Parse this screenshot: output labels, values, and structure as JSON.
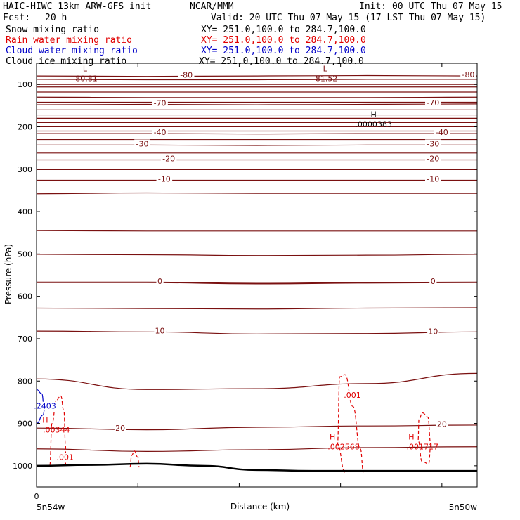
{
  "header": {
    "model": "HAIC-HIWC 13km ARW-GFS init",
    "center": "NCAR/MMM",
    "init": "Init: 00 UTC Thu 07 May 15",
    "fcst_label": "Fcst:",
    "fcst_value": "20 h",
    "valid": "Valid: 20 UTC Thu 07 May 15 (17 LST Thu 07 May 15)"
  },
  "fields": [
    {
      "label": "Snow mixing ratio",
      "xy": "XY= 251.0,100.0 to 284.7,100.0",
      "color": "#000000"
    },
    {
      "label": "Rain water mixing ratio",
      "xy": "XY= 251.0,100.0 to 284.7,100.0",
      "color": "#e00000"
    },
    {
      "label": "Cloud water mixing ratio",
      "xy": "XY= 251.0,100.0 to 284.7,100.0",
      "color": "#0000c8"
    },
    {
      "label": "Cloud ice mixing ratio",
      "xy": "XY= 251.0,100.0 to 284.7,100.0",
      "color": "#000000"
    }
  ],
  "chart_data": {
    "type": "contour",
    "xlabel": "Distance (km)",
    "ylabel": "Pressure (hPa)",
    "x_left_label": "5n54w",
    "x_right_label": "5n50w",
    "x_zero_label": "0",
    "ylim": [
      1050,
      50
    ],
    "yticks": [
      100,
      200,
      300,
      400,
      500,
      600,
      700,
      800,
      900,
      1000
    ],
    "xticks_frac": [
      0.0,
      0.23,
      0.46,
      0.69,
      0.92
    ],
    "colors": {
      "temperature": "#7a1010",
      "rain": "#e00000",
      "cloud_water": "#0000c8",
      "terrain": "#000000"
    },
    "temperature_isotherms": [
      {
        "value": -80,
        "label": "-80",
        "pressure": [
          80,
          81,
          80,
          79,
          80
        ]
      },
      {
        "value": -70,
        "label": "-70",
        "pressure": [
          148,
          147,
          148,
          147,
          146
        ]
      },
      {
        "value": -40,
        "label": "-40",
        "pressure": [
          216,
          216,
          217,
          216,
          216
        ]
      },
      {
        "value": -30,
        "label": "-30",
        "pressure": [
          243,
          243,
          244,
          243,
          243
        ]
      },
      {
        "value": -20,
        "label": "-20",
        "pressure": [
          278,
          278,
          278,
          278,
          278
        ]
      },
      {
        "value": -10,
        "label": "-10",
        "pressure": [
          326,
          326,
          326,
          326,
          326
        ]
      },
      {
        "value": 0,
        "label": "0",
        "pressure": [
          567,
          567,
          570,
          568,
          567
        ]
      },
      {
        "value": 10,
        "label": "10",
        "pressure": [
          682,
          684,
          689,
          688,
          684
        ]
      },
      {
        "value": 20,
        "label": "20",
        "pressure": [
          911,
          915,
          909,
          906,
          904
        ]
      }
    ],
    "unlabeled_isotherm_pressures": [
      [
        88,
        89,
        89,
        88,
        88
      ],
      [
        100,
        100,
        100,
        100,
        100
      ],
      [
        106,
        106,
        106,
        106,
        106
      ],
      [
        118,
        118,
        118,
        118,
        118
      ],
      [
        130,
        131,
        131,
        131,
        130
      ],
      [
        142,
        142,
        142,
        142,
        142
      ],
      [
        160,
        160,
        160,
        160,
        160
      ],
      [
        172,
        172,
        172,
        172,
        172
      ],
      [
        180,
        180,
        180,
        180,
        180
      ],
      [
        190,
        190,
        190,
        190,
        190
      ],
      [
        200,
        200,
        200,
        200,
        200
      ],
      [
        210,
        210,
        210,
        210,
        210
      ],
      [
        230,
        230,
        230,
        230,
        230
      ],
      [
        262,
        262,
        262,
        262,
        262
      ],
      [
        301,
        301,
        301,
        301,
        301
      ],
      [
        358,
        356,
        357,
        357,
        357
      ],
      [
        445,
        446,
        446,
        446,
        446
      ],
      [
        501,
        502,
        504,
        503,
        501
      ],
      [
        628,
        629,
        630,
        628,
        627
      ],
      [
        795,
        820,
        818,
        806,
        782
      ],
      [
        960,
        966,
        962,
        957,
        955
      ]
    ],
    "extrema": [
      {
        "type": "L",
        "value": "-80.81",
        "x_frac": 0.11,
        "pressure": 82
      },
      {
        "type": "L",
        "value": "-81.52",
        "x_frac": 0.655,
        "pressure": 82
      },
      {
        "type": "H",
        "value": ".0000383",
        "x_frac": 0.765,
        "pressure": 190
      }
    ],
    "rain_mixing_ratio": {
      "contour_label": ".001",
      "maxima": [
        {
          "value": ".00344",
          "x_frac": 0.045,
          "pressure": 905
        },
        {
          "value": ".002568",
          "x_frac": 0.697,
          "pressure": 945
        },
        {
          "value": ".001717",
          "x_frac": 0.876,
          "pressure": 945
        }
      ],
      "contour_labels": [
        {
          "text": ".001",
          "x_frac": 0.065,
          "pressure": 983
        },
        {
          "text": ".001",
          "x_frac": 0.717,
          "pressure": 836
        }
      ]
    },
    "cloud_water_mixing_ratio": {
      "labels": [
        {
          "text": ".2403",
          "x_frac": 0.0,
          "pressure": 862
        }
      ]
    },
    "terrain_pressure": [
      1000,
      998,
      995,
      1000,
      1010,
      1012,
      1012,
      1012,
      1012
    ]
  }
}
